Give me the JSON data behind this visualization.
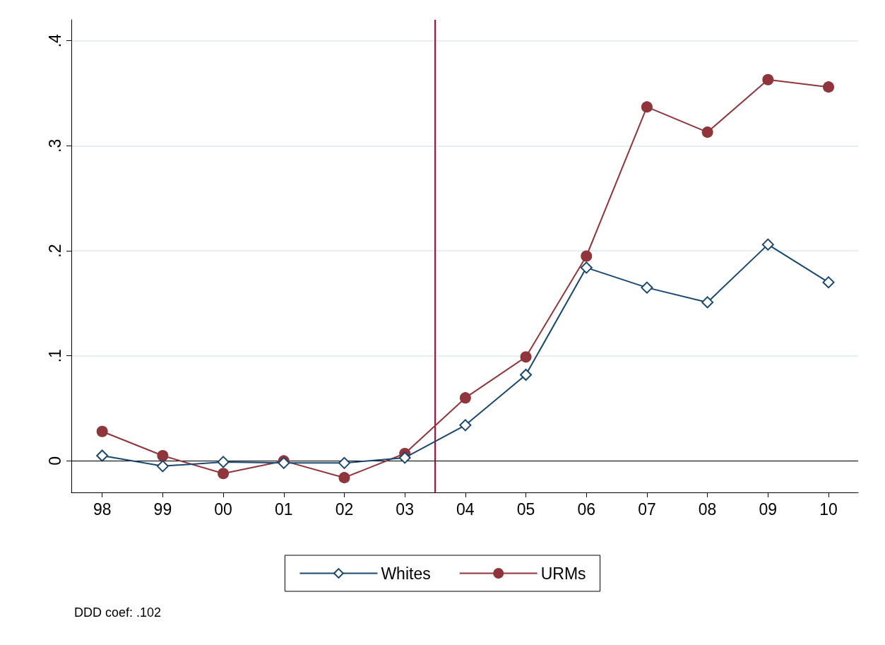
{
  "chart_data": {
    "type": "line",
    "x": [
      1998,
      1999,
      2000,
      2001,
      2002,
      2003,
      2004,
      2005,
      2006,
      2007,
      2008,
      2009,
      2010
    ],
    "xlim": [
      1997.49,
      2010.49
    ],
    "xticks": [
      {
        "value": 1998,
        "label": "98"
      },
      {
        "value": 1999,
        "label": "99"
      },
      {
        "value": 2000,
        "label": "00"
      },
      {
        "value": 2001,
        "label": "01"
      },
      {
        "value": 2002,
        "label": "02"
      },
      {
        "value": 2003,
        "label": "03"
      },
      {
        "value": 2004,
        "label": "04"
      },
      {
        "value": 2005,
        "label": "05"
      },
      {
        "value": 2006,
        "label": "06"
      },
      {
        "value": 2007,
        "label": "07"
      },
      {
        "value": 2008,
        "label": "08"
      },
      {
        "value": 2009,
        "label": "09"
      },
      {
        "value": 2010,
        "label": "10"
      }
    ],
    "ylim": [
      -0.03,
      0.42
    ],
    "yticks": [
      0,
      {
        "value": 0.1,
        "label": ".1"
      },
      {
        "value": 0.2,
        "label": ".2"
      },
      {
        "value": 0.3,
        "label": ".3"
      },
      {
        "value": 0.4,
        "label": ".4"
      }
    ],
    "series": [
      {
        "name": "Whites",
        "color": "#1a476f",
        "marker": "diamond",
        "values": [
          0.005,
          -0.005,
          -0.001,
          -0.002,
          -0.002,
          0.003,
          0.034,
          0.082,
          0.184,
          0.165,
          0.151,
          0.206,
          0.17
        ]
      },
      {
        "name": "URMs",
        "color": "#90353b",
        "marker": "circle",
        "values": [
          0.028,
          0.005,
          -0.012,
          0,
          -0.016,
          0.007,
          0.06,
          0.099,
          0.195,
          0.337,
          0.313,
          0.363,
          0.356
        ]
      }
    ],
    "ref_lines": [
      {
        "axis": "x",
        "value": 2003.5,
        "color": "#c10534"
      },
      {
        "axis": "y",
        "value": 0,
        "color": "#000000"
      }
    ],
    "grid": "y",
    "legend": "bottom",
    "annotations": [
      "DDD coef: .102"
    ]
  }
}
